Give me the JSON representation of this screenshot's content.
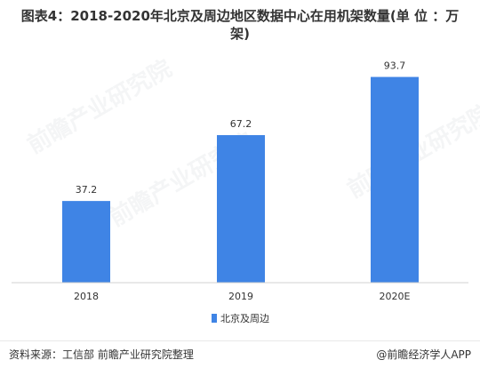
{
  "title": "图表4：2018-2020年北京及周边地区数据中心在用机架数量(单 位 ：万架)",
  "chart_data": {
    "type": "bar",
    "categories": [
      "2018",
      "2019",
      "2020E"
    ],
    "series": [
      {
        "name": "北京及周边",
        "values": [
          37.2,
          67.2,
          93.7
        ]
      }
    ],
    "ylim": [
      0,
      100
    ],
    "grid": false,
    "legend_position": "bottom-center",
    "colors": {
      "bar": "#3f84e5",
      "axis": "#d0d0d0"
    }
  },
  "watermark": "前瞻产业研究院",
  "footer": {
    "source": "资料来源：工信部 前瞻产业研究院整理",
    "brand": "@前瞻经济学人APP"
  }
}
